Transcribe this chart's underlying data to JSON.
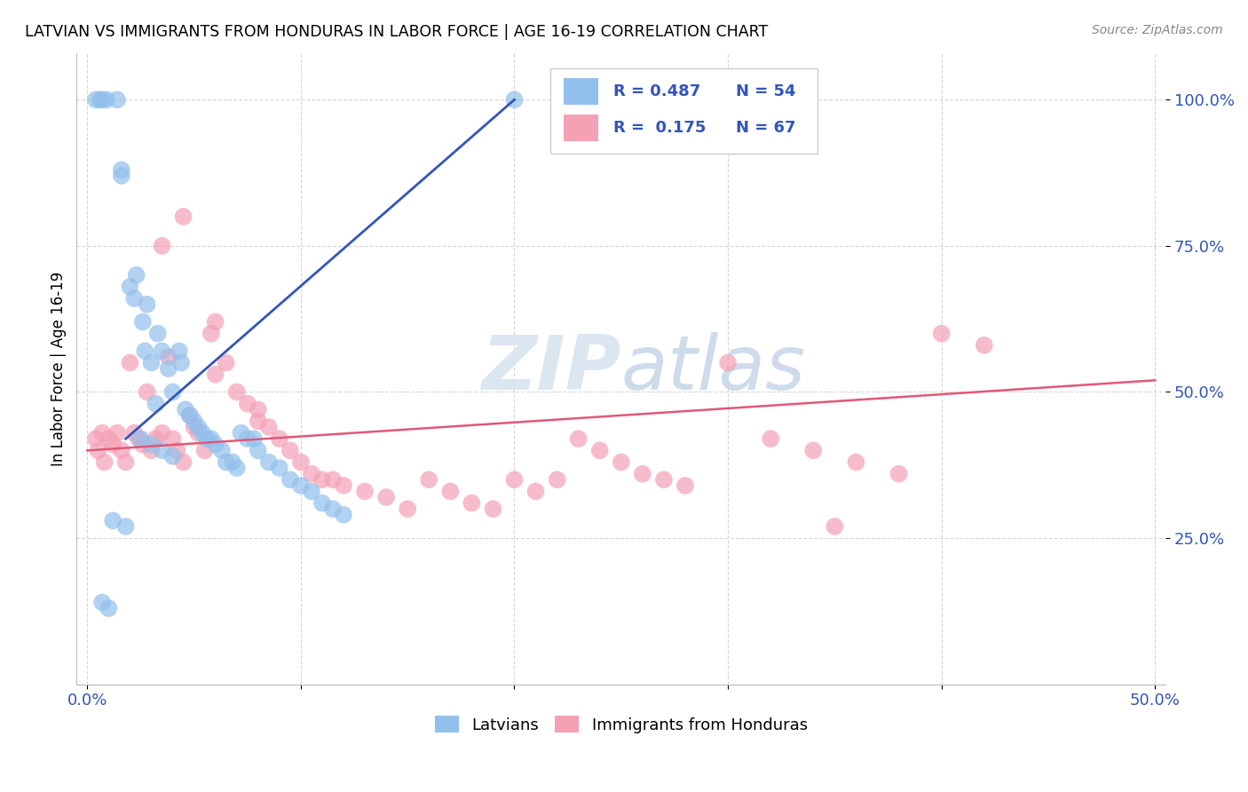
{
  "title": "LATVIAN VS IMMIGRANTS FROM HONDURAS IN LABOR FORCE | AGE 16-19 CORRELATION CHART",
  "source": "Source: ZipAtlas.com",
  "ylabel": "In Labor Force | Age 16-19",
  "blue_color": "#92C0EC",
  "pink_color": "#F4A0B5",
  "blue_line_color": "#3355BB",
  "pink_line_color": "#E05878",
  "watermark_color": "#D8E4F0",
  "latvian_x": [
    0.004,
    0.006,
    0.007,
    0.009,
    0.014,
    0.016,
    0.016,
    0.02,
    0.022,
    0.023,
    0.026,
    0.027,
    0.028,
    0.03,
    0.032,
    0.033,
    0.035,
    0.038,
    0.04,
    0.043,
    0.044,
    0.046,
    0.048,
    0.05,
    0.052,
    0.054,
    0.056,
    0.058,
    0.06,
    0.063,
    0.065,
    0.068,
    0.07,
    0.072,
    0.075,
    0.078,
    0.08,
    0.085,
    0.09,
    0.095,
    0.1,
    0.105,
    0.11,
    0.115,
    0.12,
    0.025,
    0.03,
    0.035,
    0.04,
    0.012,
    0.018,
    0.007,
    0.01,
    0.2
  ],
  "latvian_y": [
    1.0,
    1.0,
    1.0,
    1.0,
    1.0,
    0.87,
    0.88,
    0.68,
    0.66,
    0.7,
    0.62,
    0.57,
    0.65,
    0.55,
    0.48,
    0.6,
    0.57,
    0.54,
    0.5,
    0.57,
    0.55,
    0.47,
    0.46,
    0.45,
    0.44,
    0.43,
    0.42,
    0.42,
    0.41,
    0.4,
    0.38,
    0.38,
    0.37,
    0.43,
    0.42,
    0.42,
    0.4,
    0.38,
    0.37,
    0.35,
    0.34,
    0.33,
    0.31,
    0.3,
    0.29,
    0.42,
    0.41,
    0.4,
    0.39,
    0.28,
    0.27,
    0.14,
    0.13,
    1.0
  ],
  "honduras_x": [
    0.004,
    0.005,
    0.007,
    0.008,
    0.01,
    0.012,
    0.014,
    0.016,
    0.018,
    0.02,
    0.022,
    0.024,
    0.026,
    0.028,
    0.03,
    0.032,
    0.035,
    0.038,
    0.04,
    0.042,
    0.045,
    0.048,
    0.05,
    0.052,
    0.055,
    0.058,
    0.06,
    0.065,
    0.07,
    0.075,
    0.08,
    0.085,
    0.09,
    0.095,
    0.1,
    0.105,
    0.11,
    0.115,
    0.12,
    0.13,
    0.14,
    0.15,
    0.16,
    0.17,
    0.18,
    0.19,
    0.2,
    0.21,
    0.22,
    0.23,
    0.24,
    0.25,
    0.26,
    0.27,
    0.28,
    0.3,
    0.32,
    0.34,
    0.36,
    0.38,
    0.4,
    0.42,
    0.035,
    0.045,
    0.06,
    0.08,
    0.35
  ],
  "honduras_y": [
    0.42,
    0.4,
    0.43,
    0.38,
    0.42,
    0.41,
    0.43,
    0.4,
    0.38,
    0.55,
    0.43,
    0.42,
    0.41,
    0.5,
    0.4,
    0.42,
    0.43,
    0.56,
    0.42,
    0.4,
    0.38,
    0.46,
    0.44,
    0.43,
    0.4,
    0.6,
    0.62,
    0.55,
    0.5,
    0.48,
    0.45,
    0.44,
    0.42,
    0.4,
    0.38,
    0.36,
    0.35,
    0.35,
    0.34,
    0.33,
    0.32,
    0.3,
    0.35,
    0.33,
    0.31,
    0.3,
    0.35,
    0.33,
    0.35,
    0.42,
    0.4,
    0.38,
    0.36,
    0.35,
    0.34,
    0.55,
    0.42,
    0.4,
    0.38,
    0.36,
    0.6,
    0.58,
    0.75,
    0.8,
    0.53,
    0.47,
    0.27
  ],
  "blue_line_x": [
    0.018,
    0.2
  ],
  "blue_line_y": [
    0.42,
    1.0
  ],
  "pink_line_x": [
    0.0,
    0.5
  ],
  "pink_line_y": [
    0.4,
    0.52
  ],
  "x_ticks": [
    0.0,
    0.1,
    0.2,
    0.3,
    0.4,
    0.5
  ],
  "x_tick_labels": [
    "0.0%",
    "",
    "",
    "",
    "",
    "50.0%"
  ],
  "y_ticks": [
    0.25,
    0.5,
    0.75,
    1.0
  ],
  "y_tick_labels": [
    "25.0%",
    "50.0%",
    "75.0%",
    "100.0%"
  ],
  "legend_r1": "R = 0.487",
  "legend_n1": "N = 54",
  "legend_r2": "R =  0.175",
  "legend_n2": "N = 67"
}
